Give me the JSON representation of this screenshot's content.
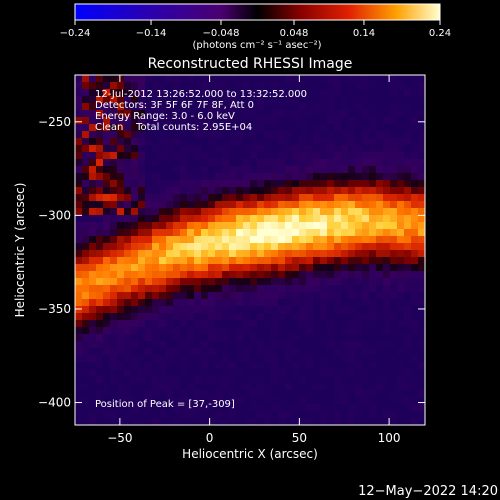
{
  "colorbar": {
    "ticks": [
      -0.24,
      -0.14,
      -0.048,
      0.048,
      0.14,
      0.24
    ],
    "tick_labels": [
      "−0.24",
      "−0.14",
      "−0.048",
      "0.048",
      "0.14",
      "0.24"
    ],
    "units": "(photons cm⁻² s⁻¹ asec⁻²)",
    "range": [
      -0.24,
      0.24
    ]
  },
  "chart_data": {
    "type": "heatmap",
    "title": "Reconstructed RHESSI Image",
    "xlabel": "Heliocentric X (arcsec)",
    "ylabel": "Heliocentric Y (arcsec)",
    "xlim": [
      -75,
      120
    ],
    "ylim": [
      -412,
      -225
    ],
    "xticks": [
      -50,
      0,
      50,
      100
    ],
    "xtick_labels": [
      "−50",
      "0",
      "50",
      "100"
    ],
    "yticks": [
      -250,
      -300,
      -350,
      -400
    ],
    "ytick_labels": [
      "−250",
      "−300",
      "−350",
      "−400"
    ],
    "info_lines": [
      "12-Jul-2012 13:26:52.000 to 13:32:52.000",
      "Detectors: 3F 5F 6F 7F 8F, Att 0",
      "Energy Range: 3.0 - 6.0 keV",
      "Clean    Total counts: 2.95E+04"
    ],
    "peak_label": "Position of Peak = [37,-309]",
    "peak": [
      37,
      -309
    ],
    "ridge": [
      [
        -75,
        -340
      ],
      [
        -45,
        -328
      ],
      [
        -15,
        -318
      ],
      [
        15,
        -312
      ],
      [
        37,
        -309
      ],
      [
        60,
        -305
      ],
      [
        85,
        -302
      ],
      [
        120,
        -305
      ]
    ]
  },
  "footer": {
    "timestamp": "12−May−2022 14:20"
  }
}
